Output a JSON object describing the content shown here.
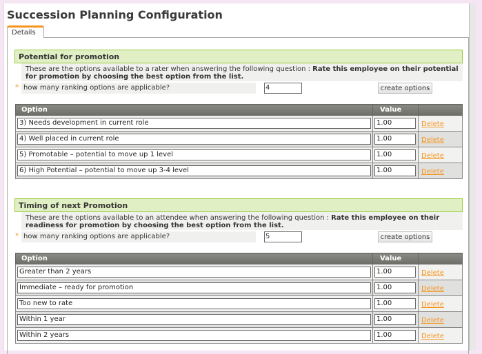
{
  "title": "Succession Planning Configuration",
  "tab": "Details",
  "sections": [
    {
      "header": "Potential for promotion",
      "desc_prefix": "These are the options available to a rater when answering the following question : ",
      "desc_bold": "Rate this employee on their potential for promotion by choosing the best option from the list.",
      "required": "*",
      "question": "how many ranking options are applicable?",
      "count": "4",
      "button": "create options",
      "col_option": "Option",
      "col_value": "Value",
      "delete_label": "Delete",
      "rows": [
        {
          "option": "3) Needs development in current role",
          "value": "1.00"
        },
        {
          "option": "4) Well placed in current role",
          "value": "1.00"
        },
        {
          "option": "5) Promotable – potential to move up 1 level",
          "value": "1.00"
        },
        {
          "option": "6) High Potential – potential to move up 3-4 level",
          "value": "1.00"
        }
      ]
    },
    {
      "header": "Timing of next Promotion",
      "desc_prefix": "These are the options available to an attendee when answering the following question : ",
      "desc_bold": "Rate this employee on their readiness for promotion by choosing the best option from the list.",
      "required": "*",
      "question": "how many ranking options are applicable?",
      "count": "5",
      "button": "create options",
      "col_option": "Option",
      "col_value": "Value",
      "delete_label": "Delete",
      "rows": [
        {
          "option": "Greater than 2 years",
          "value": "1.00"
        },
        {
          "option": "Immediate – ready for promotion",
          "value": "1.00"
        },
        {
          "option": "Too new to rate",
          "value": "1.00"
        },
        {
          "option": "Within 1 year",
          "value": "1.00"
        },
        {
          "option": "Within 2 years",
          "value": "1.00"
        }
      ]
    }
  ],
  "colors": {
    "accent": "#f7941d",
    "section_bg": "#e0efc4",
    "section_border": "#9ccc3c"
  }
}
